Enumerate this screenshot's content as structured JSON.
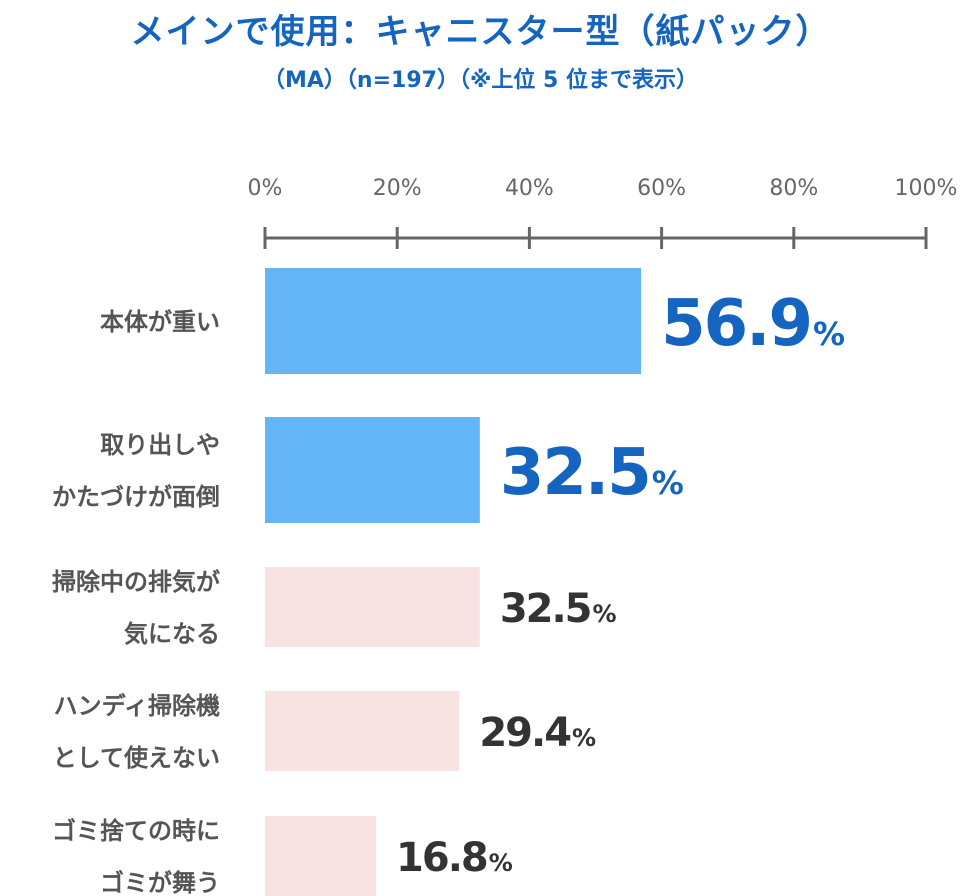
{
  "title": "メインで使用：キャニスター型（紙パック）",
  "subtitle": "（MA）（n=197）（※上位 5 位まで表示）",
  "colors": {
    "title": "#1565c0",
    "highlight_bar": "#64b5f6",
    "normal_bar": "#f8e3e2",
    "highlight_value": "#1565c0",
    "normal_value": "#333333",
    "axis": "#666666",
    "label": "#555555"
  },
  "chart_data": {
    "type": "bar",
    "orientation": "horizontal",
    "xlim": [
      0,
      100
    ],
    "xticks": [
      "0%",
      "20%",
      "40%",
      "60%",
      "80%",
      "100%"
    ],
    "xtick_values": [
      0,
      20,
      40,
      60,
      80,
      100
    ],
    "categories": [
      [
        "本体が重い"
      ],
      [
        "取り出しや",
        "かたづけが面倒"
      ],
      [
        "掃除中の排気が",
        "気になる"
      ],
      [
        "ハンディ掃除機",
        "として使えない"
      ],
      [
        "ゴミ捨ての時に",
        "ゴミが舞う"
      ]
    ],
    "values": [
      56.9,
      32.5,
      32.5,
      29.4,
      16.8
    ],
    "value_labels": [
      "56.9",
      "32.5",
      "32.5",
      "29.4",
      "16.8"
    ],
    "unit": "%",
    "highlighted": [
      true,
      true,
      false,
      false,
      false
    ]
  }
}
